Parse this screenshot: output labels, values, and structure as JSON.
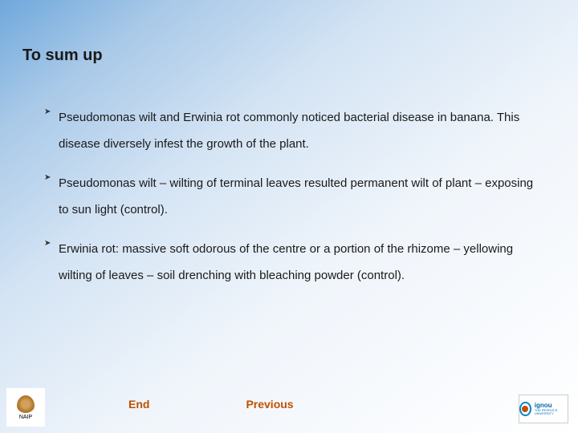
{
  "title": "To sum  up",
  "bullets": [
    "Pseudomonas wilt and Erwinia rot commonly noticed bacterial disease in banana. This disease diversely infest the growth of the plant.",
    "Pseudomonas  wilt – wilting of terminal leaves resulted permanent wilt of plant – exposing to sun light (control).",
    "Erwinia rot: massive soft odorous of the centre or a portion of the rhizome – yellowing wilting of leaves – soil drenching with bleaching powder  (control)."
  ],
  "nav": {
    "end": "End",
    "previous": "Previous"
  },
  "logo_left": {
    "text": "NAIP"
  },
  "logo_right": {
    "text1": "ignou",
    "text2": "THE PEOPLE'S UNIVERSITY"
  },
  "colors": {
    "nav_btn": "#c05000",
    "text": "#1a1a1a"
  }
}
